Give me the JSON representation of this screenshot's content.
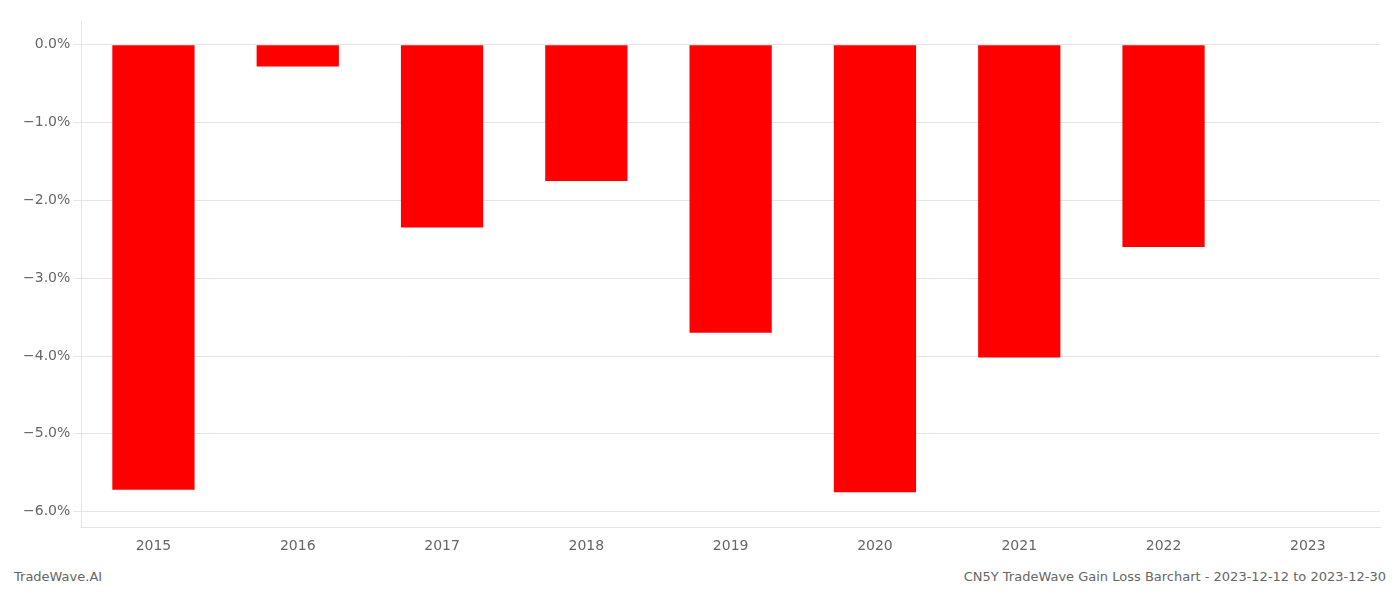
{
  "chart_data": {
    "type": "bar",
    "categories": [
      "2015",
      "2016",
      "2017",
      "2018",
      "2019",
      "2020",
      "2021",
      "2022",
      "2023"
    ],
    "values": [
      -5.72,
      -0.28,
      -2.35,
      -1.75,
      -3.7,
      -5.75,
      -4.02,
      -2.6,
      0.0
    ],
    "color": "#FF0000",
    "ylim": [
      -6.2,
      0.3
    ],
    "yticks": [
      {
        "value": 0.0,
        "label": "0.0%"
      },
      {
        "value": -1.0,
        "label": "−1.0%"
      },
      {
        "value": -2.0,
        "label": "−2.0%"
      },
      {
        "value": -3.0,
        "label": "−3.0%"
      },
      {
        "value": -4.0,
        "label": "−4.0%"
      },
      {
        "value": -5.0,
        "label": "−5.0%"
      },
      {
        "value": -6.0,
        "label": "−6.0%"
      }
    ],
    "grid": true,
    "annotations": [
      "TradeWave.AI",
      "CN5Y TradeWave Gain Loss Barchart - 2023-12-12 to 2023-12-30"
    ]
  }
}
